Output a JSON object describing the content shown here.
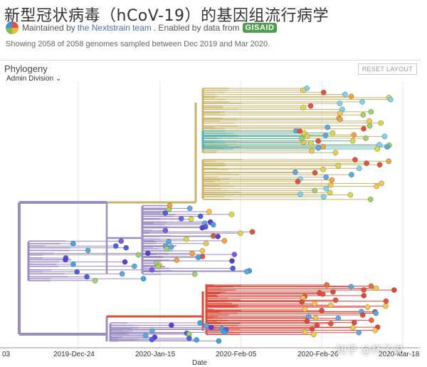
{
  "header": {
    "title": "新型冠状病毒（hCoV-19）的基因组流行病学",
    "maintained_prefix": "Maintained by",
    "maintained_link": "the Nextstrain team",
    "enabled_text": ". Enabled by data from",
    "gisaid_label": "GISAID",
    "showing_text": "Showing 2058 of 2058 genomes sampled between Dec 2019 and Mar 2020."
  },
  "panel": {
    "title": "Phylogeny",
    "reset_label": "RESET LAYOUT",
    "color_by": "Admin Division"
  },
  "axis": {
    "ticks": [
      "03",
      "2019-Dec-24",
      "2020-Jan-15",
      "2020-Feb-05",
      "2020-Feb-26",
      "2020-Mar-18"
    ],
    "label": "Date"
  },
  "watermark": "知乎 @杯子说",
  "colors": {
    "accent_link": "#4c6fb3",
    "gisaid_green": "#4f9e4d",
    "root_purple": "#9b8cc4",
    "tan_clade": "#c8b46a",
    "teal_clade": "#4fb3b3",
    "red_clade": "#e0483a",
    "blue_tips": "#5a3fd6"
  }
}
